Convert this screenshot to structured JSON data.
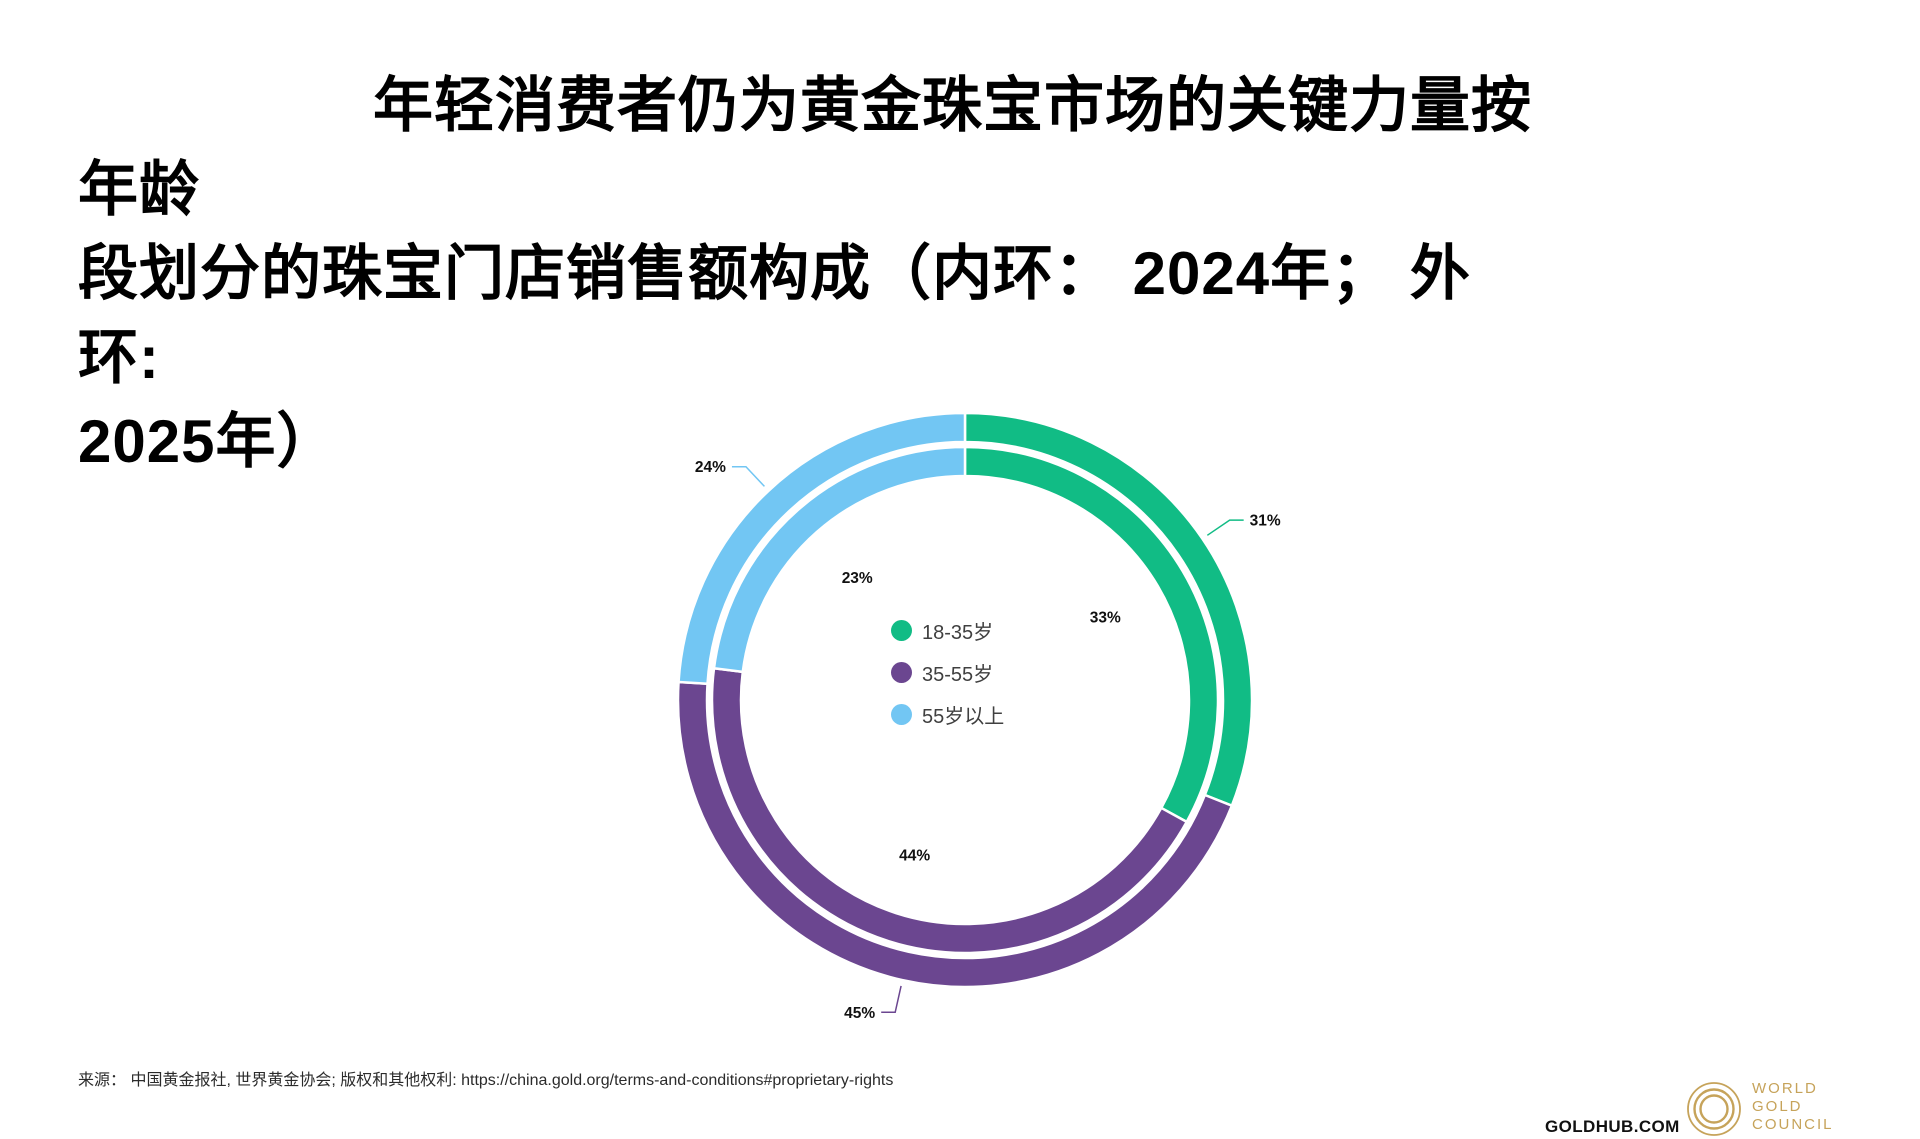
{
  "title": {
    "lines": [
      "年轻消费者仍为黄金珠宝市场的关键力量按年龄",
      "段划分的珠宝门店销售额构成（内环： 2024年； 外环:",
      "2025年）"
    ]
  },
  "chart_data": {
    "type": "donut",
    "subtype": "double-ring",
    "categories": [
      "18-35岁",
      "35-55岁",
      "55岁以上"
    ],
    "colors": [
      "#11BC85",
      "#6B4690",
      "#72C6F3"
    ],
    "rings": [
      {
        "name": "2024年",
        "position": "inner",
        "values": [
          33,
          44,
          23
        ]
      },
      {
        "name": "2025年",
        "position": "outer",
        "values": [
          31,
          45,
          24
        ]
      }
    ],
    "label_format": "{value}%",
    "legend_position": "center",
    "start_angle_deg": 0,
    "direction": "clockwise"
  },
  "legend": {
    "items": [
      {
        "label": "18-35岁",
        "color": "#11BC85"
      },
      {
        "label": "35-55岁",
        "color": "#6B4690"
      },
      {
        "label": "55岁以上",
        "color": "#72C6F3"
      }
    ]
  },
  "footer": {
    "source": "来源： 中国黄金报社, 世界黄金协会; 版权和其他权利: https://china.gold.org/terms-and-conditions#proprietary-rights",
    "goldhub": "GOLDHUB.COM",
    "wgc": {
      "lines": [
        "WORLD",
        "GOLD",
        "COUNCIL"
      ],
      "color": "#C6A35A"
    }
  }
}
